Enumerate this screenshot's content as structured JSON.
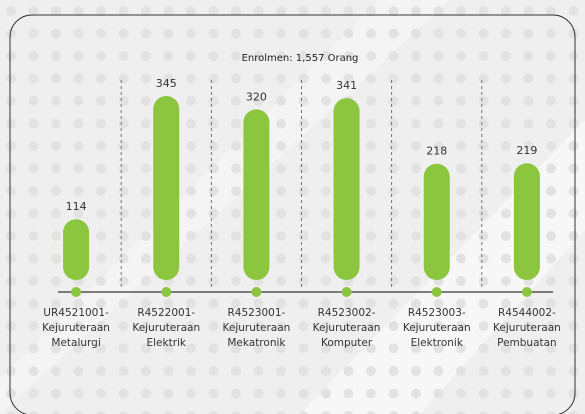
{
  "chart_data": {
    "type": "bar",
    "title": "Enrolmen: 1,557 Orang",
    "categories": [
      [
        "UR4521001-",
        "Kejuruteraan",
        "Metalurgi"
      ],
      [
        "R4522001-",
        "Kejuruteraan",
        "Elektrik"
      ],
      [
        "R4523001-",
        "Kejuruteraan",
        "Mekatronik"
      ],
      [
        "R4523002-",
        "Kejuruteraan",
        "Komputer"
      ],
      [
        "R4523003-",
        "Kejuruteraan",
        "Elektronik"
      ],
      [
        "R4544002-",
        "Kejuruteraan",
        "Pembuatan"
      ]
    ],
    "values": [
      114,
      345,
      320,
      341,
      218,
      219
    ],
    "color": "#8cc63e"
  }
}
